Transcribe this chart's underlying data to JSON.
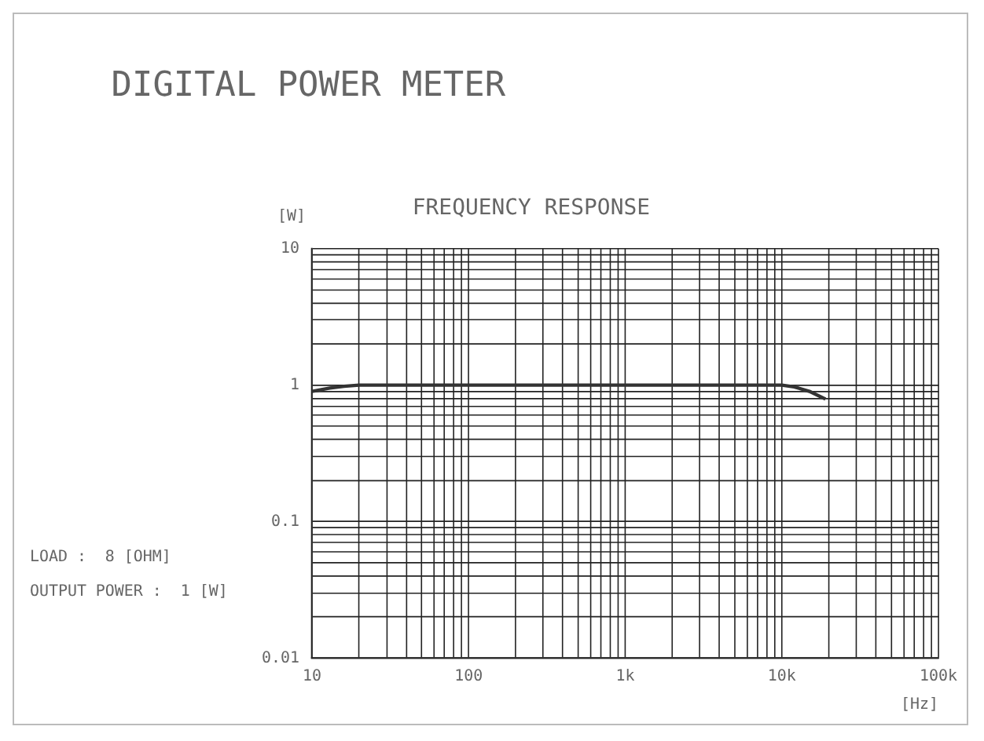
{
  "chart_data": {
    "type": "line",
    "title": "DIGITAL POWER METER",
    "subtitle": "FREQUENCY RESPONSE",
    "xlabel": "[Hz]",
    "ylabel": "[W]",
    "annotations": [
      "LOAD :  8 [OHM]",
      "OUTPUT POWER :  1 [W]"
    ],
    "log": "xy",
    "grid": true,
    "legend": false,
    "marker": "none",
    "line_style": "solid",
    "xlim": [
      10,
      100000
    ],
    "ylim": [
      0.01,
      10
    ],
    "xticks": [
      {
        "value": 10,
        "label": "10"
      },
      {
        "value": 20,
        "label": null
      },
      {
        "value": 30,
        "label": null
      },
      {
        "value": 40,
        "label": null
      },
      {
        "value": 50,
        "label": null
      },
      {
        "value": 60,
        "label": null
      },
      {
        "value": 70,
        "label": null
      },
      {
        "value": 80,
        "label": null
      },
      {
        "value": 90,
        "label": null
      },
      {
        "value": 100,
        "label": "100"
      },
      {
        "value": 200,
        "label": null
      },
      {
        "value": 300,
        "label": null
      },
      {
        "value": 400,
        "label": null
      },
      {
        "value": 500,
        "label": null
      },
      {
        "value": 600,
        "label": null
      },
      {
        "value": 700,
        "label": null
      },
      {
        "value": 800,
        "label": null
      },
      {
        "value": 900,
        "label": null
      },
      {
        "value": 1000,
        "label": "1k"
      },
      {
        "value": 2000,
        "label": null
      },
      {
        "value": 3000,
        "label": null
      },
      {
        "value": 4000,
        "label": null
      },
      {
        "value": 5000,
        "label": null
      },
      {
        "value": 6000,
        "label": null
      },
      {
        "value": 7000,
        "label": null
      },
      {
        "value": 8000,
        "label": null
      },
      {
        "value": 9000,
        "label": null
      },
      {
        "value": 10000,
        "label": "10k"
      },
      {
        "value": 20000,
        "label": null
      },
      {
        "value": 30000,
        "label": null
      },
      {
        "value": 40000,
        "label": null
      },
      {
        "value": 50000,
        "label": null
      },
      {
        "value": 60000,
        "label": null
      },
      {
        "value": 70000,
        "label": null
      },
      {
        "value": 80000,
        "label": null
      },
      {
        "value": 90000,
        "label": null
      },
      {
        "value": 100000,
        "label": "100k"
      }
    ],
    "yticks": [
      0.01,
      {
        "value": 0.02,
        "label": null
      },
      {
        "value": 0.03,
        "label": null
      },
      {
        "value": 0.04,
        "label": null
      },
      {
        "value": 0.05,
        "label": null
      },
      {
        "value": 0.06,
        "label": null
      },
      {
        "value": 0.07,
        "label": null
      },
      {
        "value": 0.08,
        "label": null
      },
      {
        "value": 0.09,
        "label": null
      },
      0.1,
      {
        "value": 0.2,
        "label": null
      },
      {
        "value": 0.3,
        "label": null
      },
      {
        "value": 0.4,
        "label": null
      },
      {
        "value": 0.5,
        "label": null
      },
      {
        "value": 0.6,
        "label": null
      },
      {
        "value": 0.7,
        "label": null
      },
      {
        "value": 0.8,
        "label": null
      },
      {
        "value": 0.9,
        "label": null
      },
      1,
      {
        "value": 2,
        "label": null
      },
      {
        "value": 3,
        "label": null
      },
      {
        "value": 4,
        "label": null
      },
      {
        "value": 5,
        "label": null
      },
      {
        "value": 6,
        "label": null
      },
      {
        "value": 7,
        "label": null
      },
      {
        "value": 8,
        "label": null
      },
      {
        "value": 9,
        "label": null
      },
      10
    ],
    "series": [
      {
        "color": "#333333",
        "x": [
          10,
          13,
          16,
          20,
          50,
          1000,
          5000,
          10000,
          12000,
          15000,
          19000
        ],
        "values": [
          0.9,
          0.95,
          0.98,
          1,
          1,
          1,
          1,
          1,
          0.97,
          0.9,
          0.79
        ]
      }
    ]
  }
}
